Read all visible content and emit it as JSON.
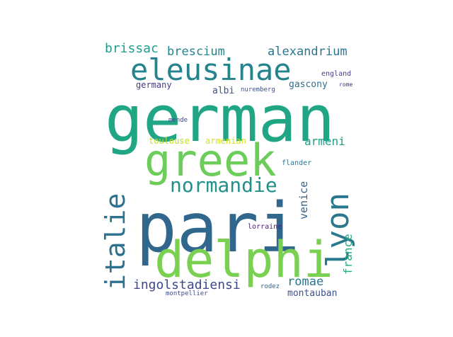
{
  "words": [
    {
      "text": "pari",
      "color": "#31668d"
    },
    {
      "text": "german",
      "color": "#21a685"
    },
    {
      "text": "delphi",
      "color": "#7ad151"
    },
    {
      "text": "greek",
      "color": "#6ccd5a"
    },
    {
      "text": "eleusinae",
      "color": "#25838e"
    },
    {
      "text": "lyon",
      "color": "#2a788e"
    },
    {
      "text": "italie",
      "color": "#2c718e"
    },
    {
      "text": "normandie",
      "color": "#21918c"
    },
    {
      "text": "ingolstadiensi",
      "color": "#3e4989"
    },
    {
      "text": "brissac",
      "color": "#1f9e89"
    },
    {
      "text": "brescium",
      "color": "#25858e"
    },
    {
      "text": "alexandrium",
      "color": "#2a768e"
    },
    {
      "text": "armeni",
      "color": "#1fa187"
    },
    {
      "text": "romae",
      "color": "#2a788e"
    },
    {
      "text": "france",
      "color": "#25ac82"
    },
    {
      "text": "venice",
      "color": "#33638d"
    },
    {
      "text": "montauban",
      "color": "#3b528b"
    },
    {
      "text": "germany",
      "color": "#443983"
    },
    {
      "text": "albi",
      "color": "#39568c"
    },
    {
      "text": "gascony",
      "color": "#2d708e"
    },
    {
      "text": "toulouse",
      "color": "#bddf26"
    },
    {
      "text": "armenian",
      "color": "#d2e21b"
    },
    {
      "text": "england",
      "color": "#424086"
    },
    {
      "text": "nuremberg",
      "color": "#3b528b"
    },
    {
      "text": "rome",
      "color": "#472d7b"
    },
    {
      "text": "mende",
      "color": "#3e4a89"
    },
    {
      "text": "flander",
      "color": "#2c728e"
    },
    {
      "text": "lorraine",
      "color": "#482475"
    },
    {
      "text": "rodez",
      "color": "#34608d"
    },
    {
      "text": "montpellier",
      "color": "#3e4c8a"
    }
  ]
}
